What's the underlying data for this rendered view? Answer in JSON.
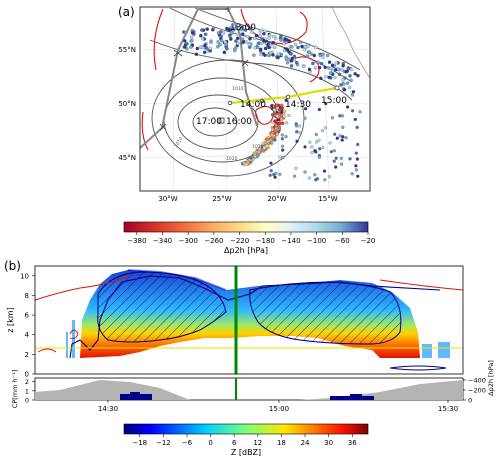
{
  "chart_data": [
    {
      "panel_label": "(a)",
      "type": "scatter",
      "x_ticks": [
        "30°W",
        "25°W",
        "20°W",
        "15°W"
      ],
      "y_ticks": [
        "55°N",
        "50°N",
        "45°N"
      ],
      "flight_times": [
        "13:00",
        "14:00",
        "14:30",
        "15:00",
        "16:00",
        "17:00"
      ],
      "contour_labels": [
        "1010",
        "1010",
        "1020",
        "1020"
      ],
      "colorbar": {
        "label": "Δp2h [hPa]",
        "ticks": [
          -380,
          -340,
          -300,
          -260,
          -220,
          -180,
          -140,
          -100,
          -60,
          -20
        ],
        "range": [
          -400,
          -20
        ],
        "colormap": "RdYlBu"
      },
      "colors": {
        "track": "#888888",
        "pressure_contours": "#555555",
        "red_contours": "#dd1111",
        "segment": "#dddd00",
        "coast": "#9a9a9a"
      }
    },
    {
      "panel_label": "(b)",
      "type": "heatmap",
      "time_ticks": [
        "14:30",
        "15:00",
        "15:30"
      ],
      "z_axis": {
        "label": "z [km]",
        "ticks": [
          0,
          2,
          4,
          6,
          8,
          10
        ],
        "range": [
          0,
          11
        ]
      },
      "cp_axis": {
        "label": "CP[mm h⁻¹]",
        "ticks": [
          0,
          1,
          2
        ]
      },
      "dp_axis": {
        "label": "Δp2h [hPa]",
        "ticks": [
          -400,
          -200,
          0
        ]
      },
      "colorbar": {
        "label": "Z [dBZ]",
        "ticks": [
          -18,
          -12,
          -6,
          0,
          6,
          12,
          18,
          24,
          30,
          36
        ],
        "range": [
          -22,
          40
        ],
        "colormap": "jet"
      },
      "colors": {
        "green_marker": "#008800",
        "yellow_line": "#e6e600",
        "navy": "#000080",
        "red": "#dd1111"
      }
    }
  ]
}
